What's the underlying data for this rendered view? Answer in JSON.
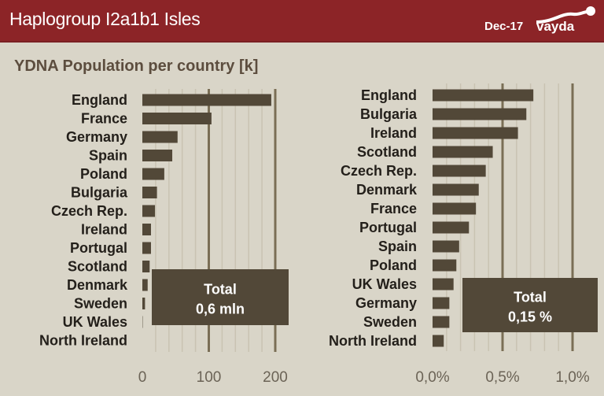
{
  "header": {
    "title": "Haplogroup I2a1b1 Isles",
    "date": "Dec-17",
    "logo_text": "vayda"
  },
  "subtitle": "YDNA Population per country [k]",
  "colors": {
    "header": "#8c2427",
    "background": "#d9d5c8",
    "bar": "#524838",
    "major_grid": "#7a6e55",
    "minor_grid": "#c9c3b2"
  },
  "chart_data": [
    {
      "type": "bar",
      "orientation": "horizontal",
      "title": "YDNA Population per country [k]",
      "categories": [
        "England",
        "France",
        "Germany",
        "Spain",
        "Poland",
        "Bulgaria",
        "Czech Rep.",
        "Ireland",
        "Portugal",
        "Scotland",
        "Denmark",
        "Sweden",
        "UK Wales",
        "North Ireland"
      ],
      "values": [
        194,
        104,
        53,
        45,
        33,
        22,
        19,
        13,
        13,
        11,
        8,
        4,
        0.5,
        0
      ],
      "xlim": [
        0,
        200
      ],
      "ticks": [
        0,
        100,
        200
      ],
      "tick_labels": [
        "0",
        "100",
        "200"
      ],
      "minor_step": 20,
      "annotation": {
        "line1": "Total",
        "line2": "0,6 mln"
      }
    },
    {
      "type": "bar",
      "orientation": "horizontal",
      "categories": [
        "England",
        "Bulgaria",
        "Ireland",
        "Scotland",
        "Czech Rep.",
        "Denmark",
        "France",
        "Portugal",
        "Spain",
        "Poland",
        "UK Wales",
        "Germany",
        "Sweden",
        "North Ireland"
      ],
      "values": [
        0.72,
        0.67,
        0.61,
        0.43,
        0.38,
        0.33,
        0.31,
        0.26,
        0.19,
        0.17,
        0.15,
        0.12,
        0.12,
        0.08
      ],
      "unit": "%",
      "xlim": [
        0,
        1.0
      ],
      "ticks": [
        0,
        0.5,
        1.0
      ],
      "tick_labels": [
        "0,0%",
        "0,5%",
        "1,0%"
      ],
      "minor_step": 0.1,
      "annotation": {
        "line1": "Total",
        "line2": "0,15 %"
      }
    }
  ]
}
